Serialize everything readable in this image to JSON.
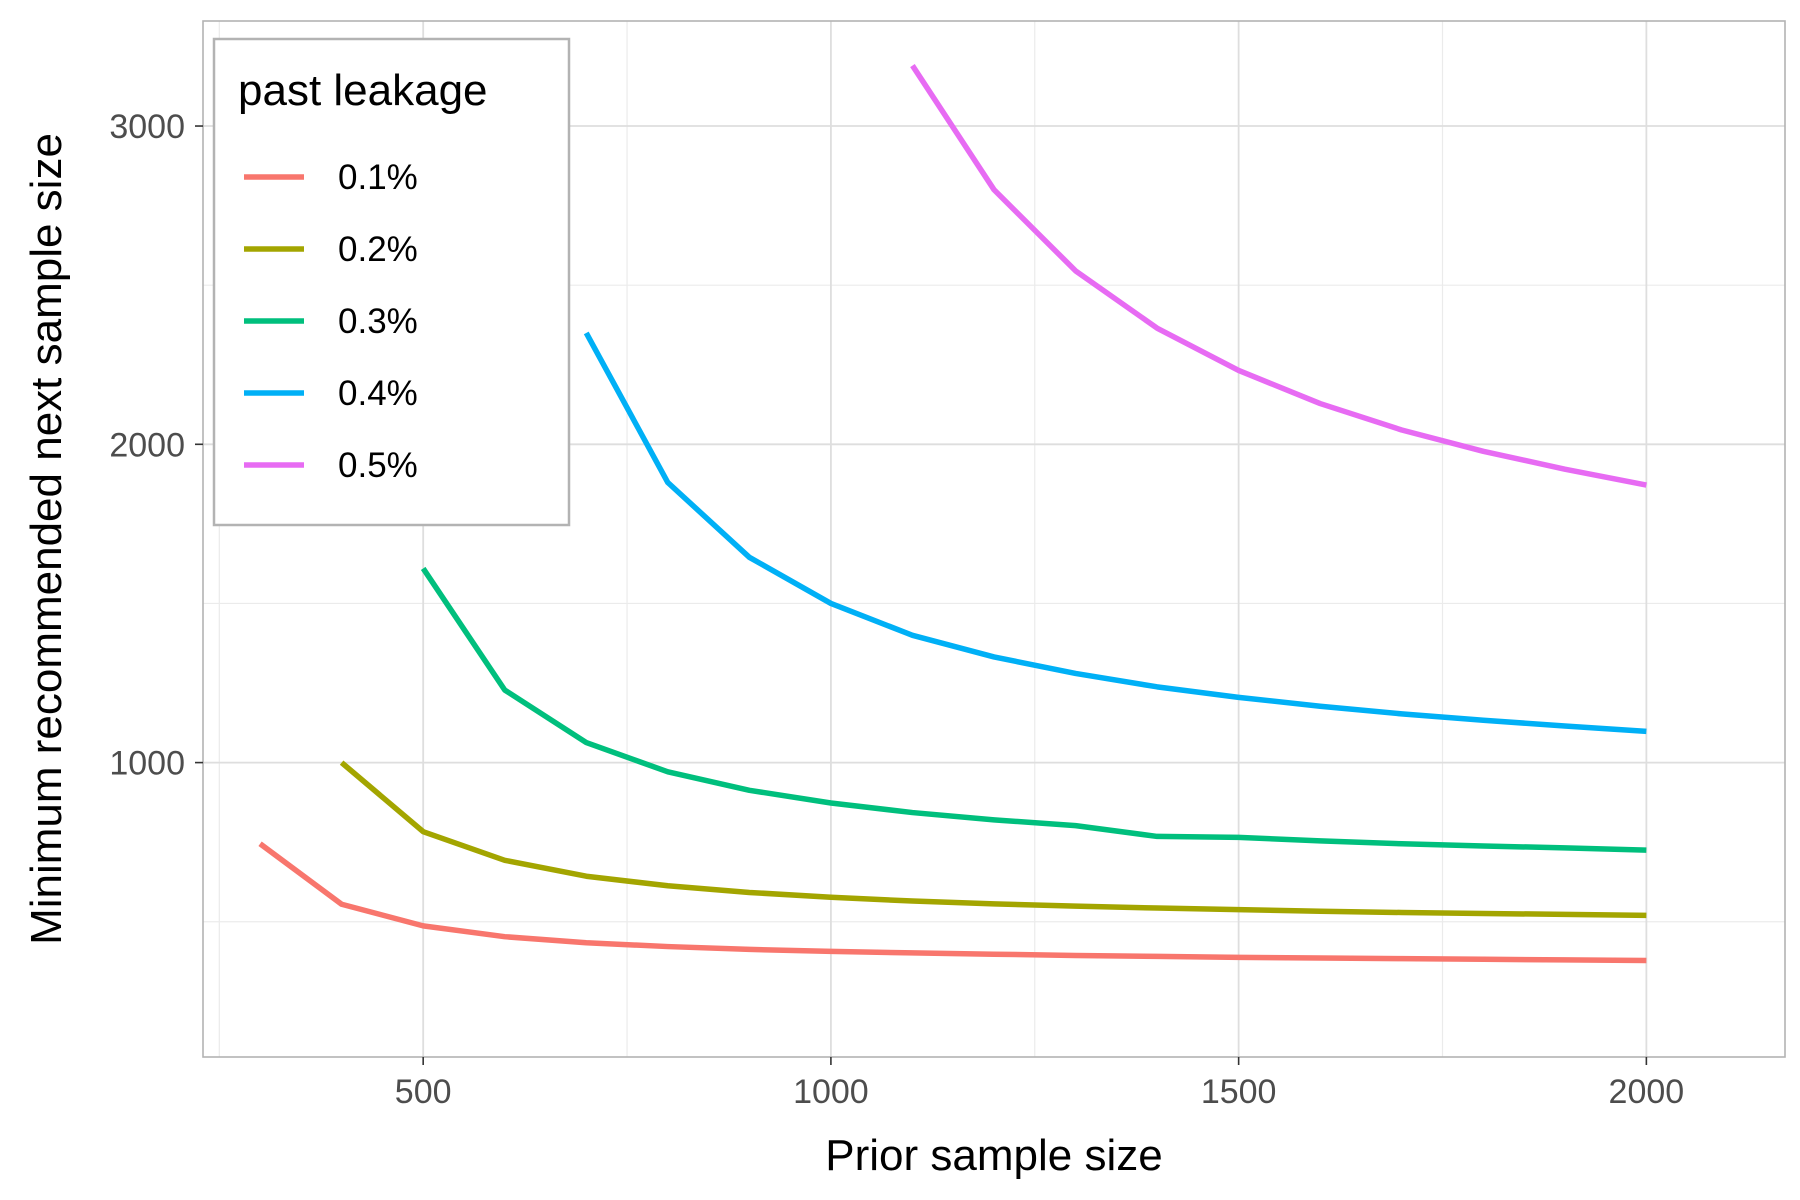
{
  "chart_data": {
    "type": "line",
    "title": "",
    "xlabel": "Prior sample size",
    "ylabel": "Minimum recommended next sample size",
    "xlim": [
      230,
      2170
    ],
    "ylim": [
      75,
      3330
    ],
    "x_ticks": [
      500,
      1000,
      1500,
      2000
    ],
    "y_ticks": [
      1000,
      2000,
      3000
    ],
    "x_minor_ticks": [
      250,
      750,
      1250,
      1750
    ],
    "y_minor_ticks": [
      500,
      1500,
      2500
    ],
    "grid": true,
    "legend": {
      "title": "past leakage",
      "position": "top-left"
    },
    "series": [
      {
        "name": "0.1%",
        "color": "#F8766D",
        "x": [
          300,
          400,
          500,
          600,
          700,
          800,
          900,
          1000,
          1100,
          1200,
          1300,
          1400,
          1500,
          1600,
          1700,
          1800,
          1900,
          2000
        ],
        "y": [
          745,
          555,
          487,
          453,
          434,
          422,
          413,
          407,
          402,
          398,
          394,
          391,
          388,
          386,
          384,
          382,
          380,
          378
        ]
      },
      {
        "name": "0.2%",
        "color": "#A3A500",
        "x": [
          400,
          500,
          600,
          700,
          800,
          900,
          1000,
          1100,
          1200,
          1300,
          1400,
          1500,
          1600,
          1700,
          1800,
          1900,
          2000
        ],
        "y": [
          1000,
          783,
          693,
          643,
          613,
          592,
          577,
          565,
          556,
          549,
          543,
          538,
          533,
          529,
          526,
          523,
          520
        ]
      },
      {
        "name": "0.3%",
        "color": "#00BF7D",
        "x": [
          500,
          600,
          700,
          800,
          900,
          1000,
          1100,
          1200,
          1300,
          1400,
          1500,
          1600,
          1700,
          1800,
          1900,
          2000
        ],
        "y": [
          1610,
          1228,
          1063,
          971,
          913,
          873,
          843,
          820,
          802,
          768,
          765,
          754,
          745,
          738,
          732,
          725
        ]
      },
      {
        "name": "0.4%",
        "color": "#00B0F6",
        "x": [
          700,
          800,
          900,
          1000,
          1100,
          1200,
          1300,
          1400,
          1500,
          1600,
          1700,
          1800,
          1900,
          2000
        ],
        "y": [
          2350,
          1880,
          1645,
          1500,
          1400,
          1332,
          1280,
          1238,
          1205,
          1177,
          1153,
          1133,
          1115,
          1098
        ]
      },
      {
        "name": "0.5%",
        "color": "#E76BF3",
        "x": [
          1100,
          1200,
          1300,
          1400,
          1500,
          1600,
          1700,
          1800,
          1900,
          2000
        ],
        "y": [
          3190,
          2800,
          2545,
          2365,
          2232,
          2128,
          2045,
          1978,
          1922,
          1872
        ]
      }
    ]
  }
}
